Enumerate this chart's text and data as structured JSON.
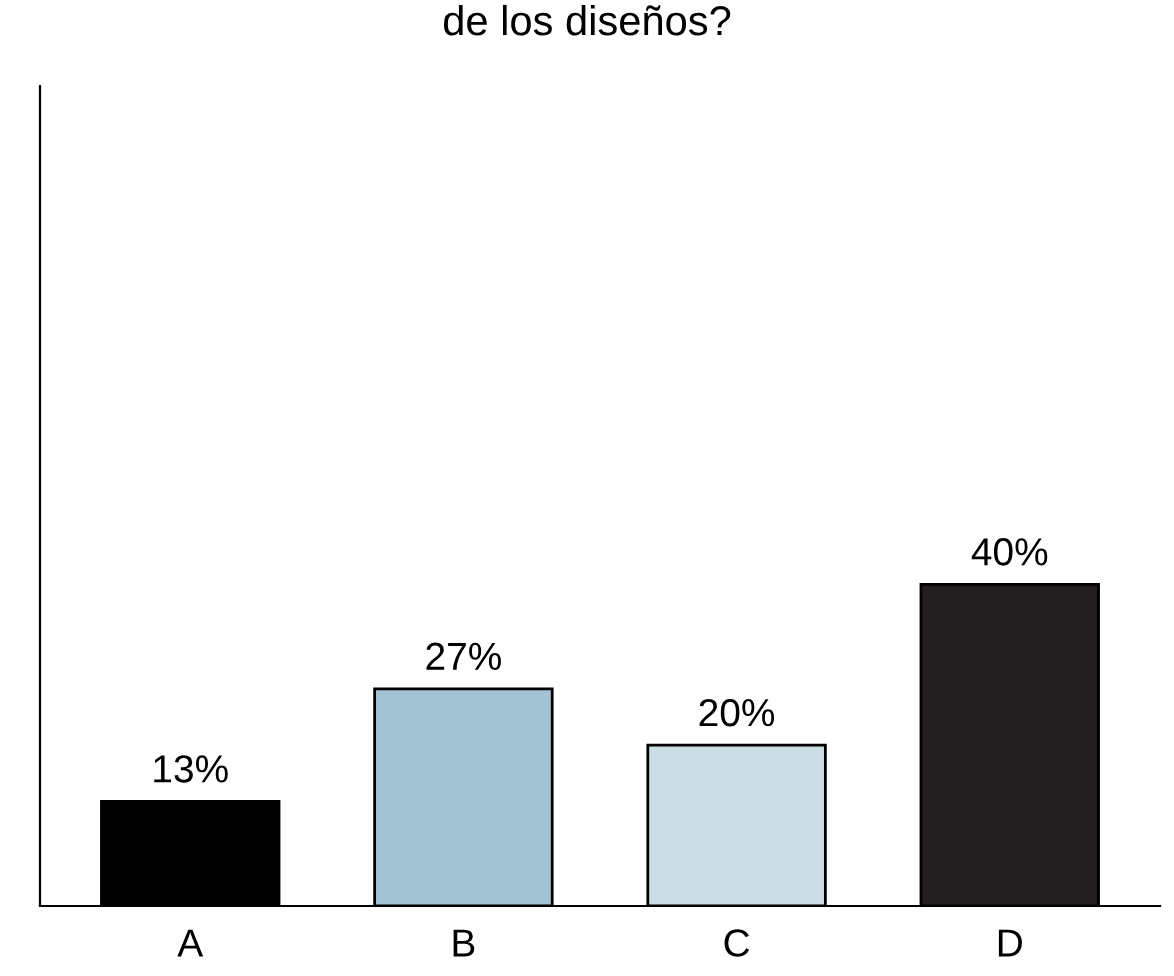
{
  "chart_data": {
    "type": "bar",
    "title": "de los diseños?",
    "categories": [
      "A",
      "B",
      "C",
      "D"
    ],
    "values": [
      13,
      27,
      20,
      40
    ],
    "value_labels": [
      "13%",
      "27%",
      "20%",
      "40%"
    ],
    "colors": [
      "#000000",
      "#a3c3d3",
      "#cddde5",
      "#231f20"
    ],
    "grid": false,
    "legend": false
  }
}
